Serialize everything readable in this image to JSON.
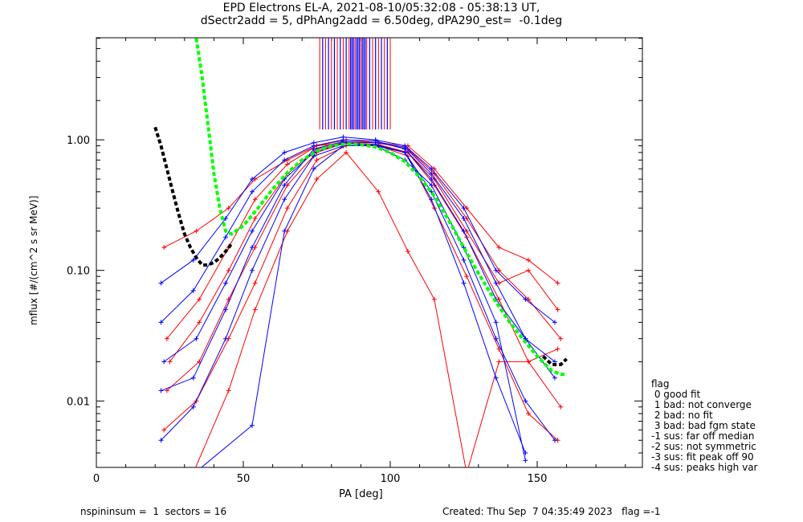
{
  "chart_data": {
    "type": "line",
    "title": [
      "EPD Electrons EL-A, 2021-08-10/05:32:08 - 05:38:13 UT,",
      "dSectr2add = 5, dPhAng2add = 6.50deg, dPA290_est=  -0.1deg"
    ],
    "xlabel": "PA [deg]",
    "ylabel": "mflux [#/(cm^2 s sr MeV)]",
    "xlim": [
      0,
      185.8
    ],
    "ylim": [
      0.0031,
      6.05
    ],
    "yscale": "log",
    "xticks": [
      0,
      50,
      100,
      150
    ],
    "xtick_labels": [
      "0",
      "50",
      "100",
      "150"
    ],
    "yticks": [
      0.01,
      0.1,
      1.0
    ],
    "ytick_labels": [
      "0.01",
      "0.10",
      "1.00"
    ],
    "grid": false,
    "colors": {
      "red": "#ff0000",
      "blue": "#0000ff",
      "green": "#00ff00",
      "black": "#000000"
    },
    "series": [
      {
        "name": "red spectra (sample)",
        "color": "red",
        "marker": "+",
        "curves": [
          {
            "x": [
              23,
              34,
              45,
              54,
              65,
              75,
              85,
              96,
              106,
              115,
              126,
              137,
              147,
              157
            ],
            "y": [
              0.006,
              0.01,
              0.03,
              0.08,
              0.3,
              0.7,
              0.9,
              0.9,
              0.75,
              0.3,
              0.09,
              0.025,
              0.008,
              0.005
            ]
          },
          {
            "x": [
              24,
              35,
              45,
              54,
              65,
              75,
              85,
              96,
              106,
              115,
              126,
              137,
              147,
              158
            ],
            "y": [
              0.012,
              0.02,
              0.06,
              0.15,
              0.45,
              0.8,
              0.95,
              0.92,
              0.8,
              0.45,
              0.18,
              0.06,
              0.02,
              0.009
            ]
          },
          {
            "x": [
              24,
              35,
              45,
              54,
              65,
              75,
              85,
              96,
              106,
              115,
              126,
              137,
              147,
              158
            ],
            "y": [
              0.03,
              0.06,
              0.15,
              0.35,
              0.65,
              0.9,
              1.0,
              0.95,
              0.85,
              0.55,
              0.25,
              0.1,
              0.06,
              0.03
            ]
          },
          {
            "x": [
              25,
              35,
              45,
              54,
              65,
              75,
              85,
              96,
              106,
              115,
              126,
              137,
              147,
              157
            ],
            "y": [
              0.02,
              0.04,
              0.1,
              0.25,
              0.55,
              0.85,
              0.95,
              0.9,
              0.8,
              0.5,
              0.2,
              0.08,
              0.1,
              0.05
            ]
          },
          {
            "x": [
              32,
              45,
              54,
              65,
              75,
              85,
              96,
              106,
              115,
              126,
              137,
              147,
              157
            ],
            "y": [
              0.0025,
              0.012,
              0.05,
              0.2,
              0.5,
              0.8,
              0.4,
              0.14,
              0.06,
              0.0028,
              0.02,
              0.02,
              0.025
            ]
          },
          {
            "x": [
              23,
              34,
              45,
              54,
              65,
              75,
              85,
              96,
              106,
              115,
              126,
              137,
              147,
              157
            ],
            "y": [
              0.15,
              0.2,
              0.3,
              0.5,
              0.7,
              0.9,
              0.95,
              0.95,
              0.9,
              0.6,
              0.3,
              0.15,
              0.12,
              0.08
            ]
          }
        ]
      },
      {
        "name": "blue spectra (sample)",
        "color": "blue",
        "marker": "+",
        "curves": [
          {
            "x": [
              22,
              33,
              44,
              53,
              64,
              74,
              84,
              95,
              105,
              114,
              125,
              136,
              146,
              156
            ],
            "y": [
              0.005,
              0.009,
              0.03,
              0.1,
              0.35,
              0.75,
              0.9,
              0.92,
              0.8,
              0.4,
              0.12,
              0.03,
              0.01,
              0.005
            ]
          },
          {
            "x": [
              22,
              33,
              44,
              53,
              64,
              74,
              84,
              95,
              105,
              114,
              125,
              136,
              146,
              156
            ],
            "y": [
              0.04,
              0.07,
              0.18,
              0.4,
              0.7,
              0.9,
              1.0,
              0.98,
              0.85,
              0.5,
              0.2,
              0.06,
              0.03,
              0.02
            ]
          },
          {
            "x": [
              22,
              33,
              44,
              53,
              64,
              74,
              84,
              95,
              105,
              114,
              125,
              136,
              146,
              156
            ],
            "y": [
              0.08,
              0.12,
              0.25,
              0.5,
              0.8,
              0.95,
              1.05,
              1.0,
              0.9,
              0.6,
              0.3,
              0.1,
              0.06,
              0.04
            ]
          },
          {
            "x": [
              23,
              34,
              44,
              53,
              64,
              74,
              84,
              95,
              105,
              114,
              125,
              136,
              146
            ],
            "y": [
              0.02,
              0.03,
              0.08,
              0.2,
              0.5,
              0.8,
              0.95,
              0.9,
              0.8,
              0.35,
              0.08,
              0.015,
              0.004
            ]
          },
          {
            "x": [
              22,
              33,
              44,
              53,
              64,
              74,
              84,
              95,
              105,
              114,
              125,
              136,
              146,
              156
            ],
            "y": [
              0.012,
              0.015,
              0.05,
              0.15,
              0.45,
              0.85,
              0.97,
              0.95,
              0.88,
              0.55,
              0.25,
              0.08,
              0.03,
              0.015
            ]
          },
          {
            "x": [
              35,
              53,
              64,
              74,
              84,
              95,
              105,
              114,
              125,
              136,
              146
            ],
            "y": [
              0.003,
              0.0065,
              0.2,
              0.6,
              0.9,
              0.9,
              0.7,
              0.45,
              0.15,
              0.04,
              0.0035
            ]
          }
        ]
      },
      {
        "name": "fit green dashed",
        "color": "green",
        "style": "dashed",
        "x": [
          34,
          36,
          38,
          40,
          42,
          44,
          46,
          50,
          55,
          60,
          65,
          70,
          75,
          80,
          85,
          90,
          95,
          100,
          105,
          110,
          115,
          120,
          125,
          130,
          135,
          140,
          145,
          150,
          155,
          158,
          160
        ],
        "y": [
          6.0,
          3.0,
          1.3,
          0.55,
          0.3,
          0.2,
          0.19,
          0.22,
          0.3,
          0.42,
          0.56,
          0.7,
          0.82,
          0.9,
          0.93,
          0.92,
          0.88,
          0.8,
          0.68,
          0.52,
          0.37,
          0.24,
          0.15,
          0.095,
          0.062,
          0.042,
          0.03,
          0.022,
          0.017,
          0.016,
          0.016
        ]
      },
      {
        "name": "fit black dashed",
        "color": "black",
        "style": "dashed",
        "x": [
          20,
          22,
          24,
          26,
          28,
          30,
          32,
          34,
          36,
          38,
          40,
          42,
          44,
          46
        ],
        "y": [
          1.25,
          0.9,
          0.6,
          0.4,
          0.27,
          0.19,
          0.15,
          0.125,
          0.11,
          0.11,
          0.115,
          0.125,
          0.14,
          0.16
        ]
      },
      {
        "name": "fit black dashed right",
        "color": "black",
        "style": "dashed",
        "x": [
          152,
          155,
          158,
          160
        ],
        "y": [
          0.022,
          0.019,
          0.019,
          0.021
        ]
      }
    ],
    "top_markers": {
      "description": "vertical red/blue tick bars at top of plot",
      "x_range": [
        76,
        100
      ],
      "y_range": [
        1.2,
        6.05
      ],
      "red_x": [
        76,
        78,
        80,
        82,
        84,
        86,
        88,
        90,
        92,
        94,
        96,
        98,
        100
      ],
      "blue_x": [
        77,
        79,
        81,
        83,
        85,
        86.5,
        87,
        87.5,
        88.5,
        89,
        89.5,
        90.5,
        91,
        91.5,
        93,
        95,
        97,
        99
      ]
    },
    "legend": {
      "placement": "right-bottom",
      "title": "flag",
      "entries": [
        " 0 good fit",
        " 1 bad: not converge",
        " 2 bad: no fit",
        " 3 bad: bad fgm state",
        "-1 sus: far off median",
        "-2 sus: not symmetric",
        "-3 sus: fit peak off 90",
        "-4 sus: peaks high var"
      ]
    },
    "footer": {
      "left": "nspininsum =  1  sectors = 16",
      "right": "Created: Thu Sep  7 04:35:49 2023   flag =-1"
    }
  }
}
